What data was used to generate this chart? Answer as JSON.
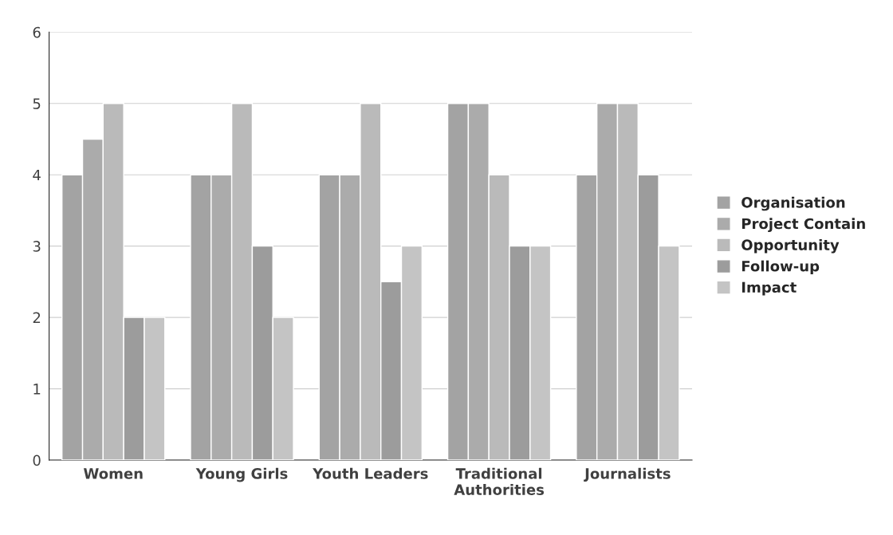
{
  "chart_data": {
    "type": "bar",
    "categories": [
      "Women",
      "Young Girls",
      "Youth Leaders",
      "Traditional\nAuthorities",
      "Journalists"
    ],
    "series": [
      {
        "name": "Organisation",
        "color": "#a3a3a3",
        "values": [
          4,
          4,
          4,
          5,
          4
        ]
      },
      {
        "name": "Project Contain",
        "color": "#ababab",
        "values": [
          4.5,
          4,
          4,
          5,
          5
        ]
      },
      {
        "name": "Opportunity",
        "color": "#bababa",
        "values": [
          5,
          5,
          5,
          4,
          5
        ]
      },
      {
        "name": "Follow-up",
        "color": "#9c9c9c",
        "values": [
          2,
          3,
          2.5,
          3,
          4
        ]
      },
      {
        "name": "Impact",
        "color": "#c4c4c4",
        "values": [
          2,
          2,
          3,
          3,
          3
        ]
      }
    ],
    "ylim": [
      0,
      6
    ],
    "yticks": [
      0,
      1,
      2,
      3,
      4,
      5,
      6
    ],
    "grid": "y",
    "legend": "right"
  }
}
